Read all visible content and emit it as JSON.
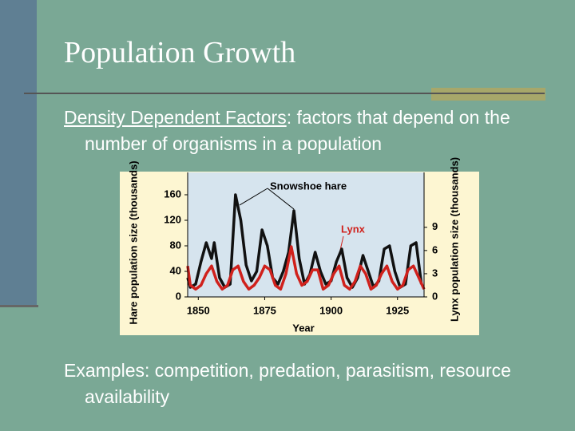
{
  "slide": {
    "title": "Population Growth",
    "body": [
      {
        "term": "Density Dependent Factors",
        "text": ": factors that depend on the number of organisms in a population"
      },
      {
        "text": "Examples: competition, predation, parasitism, resource availability"
      }
    ]
  },
  "chart_data": {
    "type": "line",
    "x_label": "Year",
    "y_label": "Hare population size (thousands)",
    "y2_label": "Lynx population size (thousands)",
    "xlim": [
      1846,
      1935
    ],
    "xticks": [
      1850,
      1875,
      1900,
      1925
    ],
    "ylim": [
      0,
      195
    ],
    "yticks": [
      0,
      40,
      80,
      120,
      160
    ],
    "y2lim": [
      0,
      16.1
    ],
    "y2ticks": [
      0,
      3,
      6,
      9
    ],
    "annotations": [
      {
        "text": "Snowshoe hare",
        "color": "#000000"
      },
      {
        "text": "Lynx",
        "color": "#d0211c"
      }
    ],
    "series": [
      {
        "name": "Snowshoe hare",
        "color": "#111111",
        "x": [
          1846,
          1847,
          1849,
          1851,
          1853,
          1855,
          1856,
          1858,
          1860,
          1862,
          1864,
          1866,
          1868,
          1870,
          1872,
          1874,
          1876,
          1878,
          1880,
          1882,
          1884,
          1886,
          1888,
          1890,
          1892,
          1894,
          1896,
          1898,
          1900,
          1902,
          1904,
          1906,
          1908,
          1910,
          1912,
          1914,
          1916,
          1918,
          1920,
          1922,
          1924,
          1926,
          1928,
          1930,
          1932,
          1934
        ],
        "values": [
          30,
          15,
          20,
          55,
          85,
          60,
          85,
          30,
          15,
          20,
          160,
          120,
          50,
          25,
          40,
          105,
          80,
          30,
          20,
          40,
          70,
          135,
          60,
          20,
          35,
          70,
          40,
          20,
          25,
          55,
          75,
          30,
          15,
          30,
          65,
          40,
          15,
          25,
          75,
          80,
          40,
          15,
          20,
          80,
          85,
          20
        ]
      },
      {
        "name": "Lynx",
        "color": "#d0211c",
        "axis": "y2",
        "x": [
          1846,
          1847,
          1849,
          1851,
          1853,
          1855,
          1857,
          1859,
          1861,
          1863,
          1865,
          1867,
          1869,
          1871,
          1873,
          1875,
          1877,
          1879,
          1881,
          1883,
          1885,
          1887,
          1889,
          1891,
          1893,
          1895,
          1897,
          1899,
          1901,
          1903,
          1905,
          1907,
          1909,
          1911,
          1913,
          1915,
          1917,
          1919,
          1921,
          1923,
          1925,
          1927,
          1929,
          1931,
          1933,
          1935
        ],
        "values": [
          4,
          1.5,
          1,
          1.5,
          3,
          4,
          2,
          1,
          1.5,
          3.5,
          4,
          2,
          1,
          1.5,
          2.5,
          4,
          3.5,
          1.5,
          1,
          3,
          6.5,
          3,
          1.5,
          2,
          3.5,
          3.5,
          1,
          1.5,
          3,
          4,
          1.5,
          1,
          2,
          4,
          3,
          1,
          1.5,
          3,
          4,
          2,
          1,
          1.5,
          3.5,
          4,
          2.5,
          1
        ]
      }
    ]
  }
}
